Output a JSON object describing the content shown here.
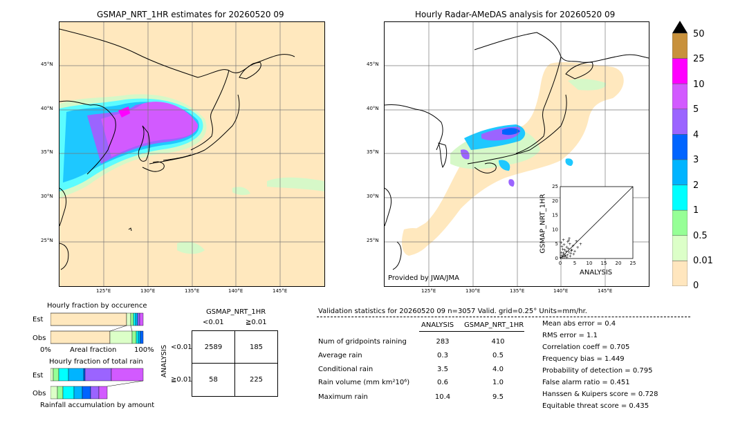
{
  "maps": {
    "left_title": "GSMAP_NRT_1HR estimates for 20260520 09",
    "right_title": "Hourly Radar-AMeDAS analysis for 20260520 09",
    "lat_labels": [
      "45°N",
      "40°N",
      "35°N",
      "30°N",
      "25°N"
    ],
    "lon_labels": [
      "125°E",
      "130°E",
      "135°E",
      "140°E",
      "145°E"
    ],
    "credit": "Provided by JWA/JMA"
  },
  "colorbar": {
    "labels": [
      "50",
      "25",
      "10",
      "5",
      "4",
      "3",
      "2",
      "1",
      "0.5",
      "0.01",
      "0"
    ],
    "colors": [
      "#c8913c",
      "#ff00ff",
      "#d25aff",
      "#9b64ff",
      "#0064ff",
      "#00b4ff",
      "#00ffff",
      "#96ff96",
      "#dcffc8",
      "#ffe6be"
    ]
  },
  "scatter": {
    "xlabel": "ANALYSIS",
    "ylabel": "GSMAP_NRT_1HR",
    "ticks": [
      "0",
      "5",
      "10",
      "15",
      "20",
      "25"
    ]
  },
  "fraction": {
    "occurrence_title": "Hourly fraction by occurence",
    "total_title": "Hourly fraction of total rain",
    "est_label": "Est",
    "obs_label": "Obs",
    "axis_left": "0%",
    "axis_mid": "Areal fraction",
    "axis_right": "100%",
    "footer": "Rainfall accumulation by amount"
  },
  "contingency": {
    "header": "GSMAP_NRT_1HR",
    "col_lt": "<0.01",
    "col_ge": "≧0.01",
    "row_axis": "ANALYSIS",
    "row_lt": "<0.01",
    "row_ge": "≧0.01",
    "a": "2589",
    "b": "185",
    "c": "58",
    "d": "225"
  },
  "validation": {
    "header": "Validation statistics for 20260520 09  n=3057 Valid. grid=0.25° Units=mm/hr.",
    "col_analysis": "ANALYSIS",
    "col_gsmap": "GSMAP_NRT_1HR",
    "rows": [
      {
        "label": "Num of gridpoints raining",
        "analysis": "283",
        "gsmap": "410"
      },
      {
        "label": "Average rain",
        "analysis": "0.3",
        "gsmap": "0.5"
      },
      {
        "label": "Conditional rain",
        "analysis": "3.5",
        "gsmap": "4.0"
      },
      {
        "label": "Rain volume (mm km²10⁶)",
        "analysis": "0.6",
        "gsmap": "1.0"
      },
      {
        "label": "Maximum rain",
        "analysis": "10.4",
        "gsmap": "9.5"
      }
    ],
    "scores": [
      "Mean abs error =    0.4",
      "RMS error =    1.1",
      "Correlation coeff =  0.705",
      "Frequency bias =  1.449",
      "Probability of detection =  0.795",
      "False alarm ratio =  0.451",
      "Hanssen & Kuipers score =  0.728",
      "Equitable threat score =  0.435"
    ]
  },
  "chart_data": {
    "type": "scatter",
    "title": "",
    "xlabel": "ANALYSIS",
    "ylabel": "GSMAP_NRT_1HR",
    "xlim": [
      0,
      25
    ],
    "ylim": [
      0,
      25
    ],
    "series": [
      {
        "x": [
          0.2,
          0.5,
          0.8,
          1.0,
          1.2,
          1.5,
          1.8,
          2.0,
          2.2,
          2.5,
          2.8,
          3.0,
          3.3,
          3.6,
          4.0,
          4.4,
          5.0,
          5.5,
          6.0,
          0.3,
          0.6,
          1.1,
          1.4,
          2.6,
          3.1,
          0.9,
          1.7,
          2.3,
          3.8,
          4.6,
          7.0,
          0.4,
          1.3,
          2.9,
          3.4
        ],
        "y": [
          0.3,
          1.0,
          0.5,
          2.0,
          1.5,
          3.0,
          0.8,
          2.5,
          4.0,
          1.2,
          3.5,
          2.2,
          5.0,
          1.8,
          3.0,
          4.5,
          2.5,
          6.0,
          3.8,
          5.5,
          4.2,
          6.5,
          0.6,
          5.8,
          7.0,
          3.3,
          1.1,
          0.4,
          2.8,
          1.6,
          5.0,
          2.1,
          4.8,
          6.2,
          0.9
        ]
      }
    ]
  }
}
